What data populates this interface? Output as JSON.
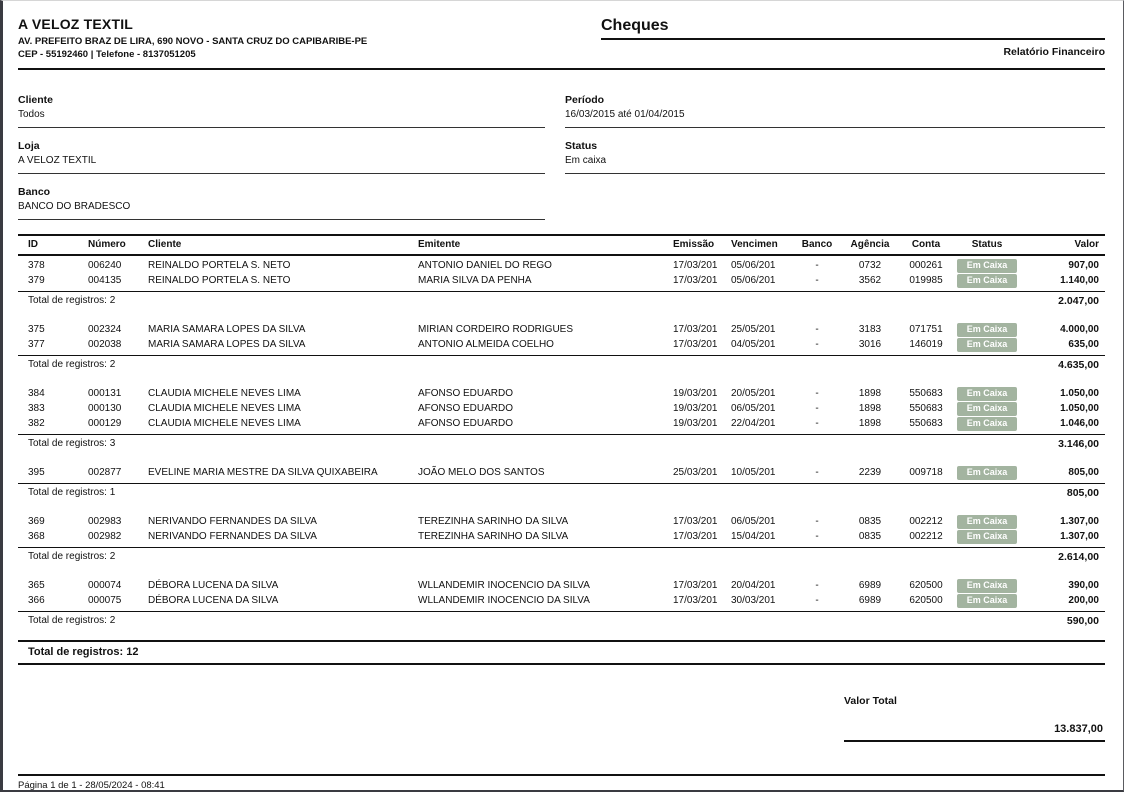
{
  "company": {
    "name": "A VELOZ TEXTIL",
    "address": "AV. PREFEITO BRAZ DE LIRA, 690 NOVO - SANTA CRUZ DO CAPIBARIBE-PE",
    "cep_phone": "CEP - 55192460 | Telefone - 8137051205"
  },
  "report": {
    "title": "Cheques",
    "subtitle": "Relatório Financeiro"
  },
  "filters": {
    "left": [
      {
        "label": "Cliente",
        "value": "Todos"
      },
      {
        "label": "Loja",
        "value": "A VELOZ TEXTIL"
      },
      {
        "label": "Banco",
        "value": "BANCO DO BRADESCO"
      }
    ],
    "right": [
      {
        "label": "Período",
        "value": "16/03/2015 até 01/04/2015"
      },
      {
        "label": "Status",
        "value": "Em caixa"
      }
    ]
  },
  "table": {
    "columns": [
      "ID",
      "Número",
      "Cliente",
      "Emitente",
      "Emissão",
      "Vencimen",
      "Banco",
      "Agência",
      "Conta",
      "Status",
      "Valor"
    ],
    "groups": [
      {
        "rows": [
          {
            "id": "378",
            "numero": "006240",
            "cliente": "REINALDO PORTELA S. NETO",
            "emitente": "ANTONIO DANIEL DO REGO",
            "emissao": "17/03/201",
            "vencimento": "05/06/201",
            "banco": "-",
            "agencia": "0732",
            "conta": "000261",
            "status": "Em Caixa",
            "valor": "907,00"
          },
          {
            "id": "379",
            "numero": "004135",
            "cliente": "REINALDO PORTELA S. NETO",
            "emitente": "MARIA SILVA DA PENHA",
            "emissao": "17/03/201",
            "vencimento": "05/06/201",
            "banco": "-",
            "agencia": "3562",
            "conta": "019985",
            "status": "Em Caixa",
            "valor": "1.140,00"
          }
        ],
        "total_label": "Total de registros: 2",
        "total_valor": "2.047,00"
      },
      {
        "rows": [
          {
            "id": "375",
            "numero": "002324",
            "cliente": "MARIA SAMARA LOPES DA SILVA",
            "emitente": "MIRIAN CORDEIRO RODRIGUES",
            "emissao": "17/03/201",
            "vencimento": "25/05/201",
            "banco": "-",
            "agencia": "3183",
            "conta": "071751",
            "status": "Em Caixa",
            "valor": "4.000,00"
          },
          {
            "id": "377",
            "numero": "002038",
            "cliente": "MARIA SAMARA LOPES DA SILVA",
            "emitente": "ANTONIO ALMEIDA COELHO",
            "emissao": "17/03/201",
            "vencimento": "04/05/201",
            "banco": "-",
            "agencia": "3016",
            "conta": "146019",
            "status": "Em Caixa",
            "valor": "635,00"
          }
        ],
        "total_label": "Total de registros: 2",
        "total_valor": "4.635,00"
      },
      {
        "rows": [
          {
            "id": "384",
            "numero": "000131",
            "cliente": "CLAUDIA MICHELE NEVES LIMA",
            "emitente": "AFONSO EDUARDO",
            "emissao": "19/03/201",
            "vencimento": "20/05/201",
            "banco": "-",
            "agencia": "1898",
            "conta": "550683",
            "status": "Em Caixa",
            "valor": "1.050,00"
          },
          {
            "id": "383",
            "numero": "000130",
            "cliente": "CLAUDIA MICHELE NEVES LIMA",
            "emitente": "AFONSO EDUARDO",
            "emissao": "19/03/201",
            "vencimento": "06/05/201",
            "banco": "-",
            "agencia": "1898",
            "conta": "550683",
            "status": "Em Caixa",
            "valor": "1.050,00"
          },
          {
            "id": "382",
            "numero": "000129",
            "cliente": "CLAUDIA MICHELE NEVES LIMA",
            "emitente": "AFONSO EDUARDO",
            "emissao": "19/03/201",
            "vencimento": "22/04/201",
            "banco": "-",
            "agencia": "1898",
            "conta": "550683",
            "status": "Em Caixa",
            "valor": "1.046,00"
          }
        ],
        "total_label": "Total de registros: 3",
        "total_valor": "3.146,00"
      },
      {
        "rows": [
          {
            "id": "395",
            "numero": "002877",
            "cliente": "EVELINE MARIA MESTRE DA SILVA QUIXABEIRA",
            "emitente": "JOÃO MELO DOS SANTOS",
            "emissao": "25/03/201",
            "vencimento": "10/05/201",
            "banco": "-",
            "agencia": "2239",
            "conta": "009718",
            "status": "Em Caixa",
            "valor": "805,00"
          }
        ],
        "total_label": "Total de registros: 1",
        "total_valor": "805,00"
      },
      {
        "rows": [
          {
            "id": "369",
            "numero": "002983",
            "cliente": "NERIVANDO FERNANDES DA SILVA",
            "emitente": "TEREZINHA SARINHO DA SILVA",
            "emissao": "17/03/201",
            "vencimento": "06/05/201",
            "banco": "-",
            "agencia": "0835",
            "conta": "002212",
            "status": "Em Caixa",
            "valor": "1.307,00"
          },
          {
            "id": "368",
            "numero": "002982",
            "cliente": "NERIVANDO FERNANDES DA SILVA",
            "emitente": "TEREZINHA SARINHO DA SILVA",
            "emissao": "17/03/201",
            "vencimento": "15/04/201",
            "banco": "-",
            "agencia": "0835",
            "conta": "002212",
            "status": "Em Caixa",
            "valor": "1.307,00"
          }
        ],
        "total_label": "Total de registros: 2",
        "total_valor": "2.614,00"
      },
      {
        "rows": [
          {
            "id": "365",
            "numero": "000074",
            "cliente": "DÉBORA LUCENA DA SILVA",
            "emitente": "WLLANDEMIR INOCENCIO DA SILVA",
            "emissao": "17/03/201",
            "vencimento": "20/04/201",
            "banco": "-",
            "agencia": "6989",
            "conta": "620500",
            "status": "Em Caixa",
            "valor": "390,00"
          },
          {
            "id": "366",
            "numero": "000075",
            "cliente": "DÉBORA LUCENA DA SILVA",
            "emitente": "WLLANDEMIR INOCENCIO DA SILVA",
            "emissao": "17/03/201",
            "vencimento": "30/03/201",
            "banco": "-",
            "agencia": "6989",
            "conta": "620500",
            "status": "Em Caixa",
            "valor": "200,00"
          }
        ],
        "total_label": "Total de registros: 2",
        "total_valor": "590,00"
      }
    ],
    "grand_total_label": "Total de registros: 12",
    "valor_total_label": "Valor Total",
    "valor_total": "13.837,00"
  },
  "footer": {
    "page_info": "Página 1 de 1 - 28/05/2024 - 08:41"
  },
  "colors": {
    "badge_bg": "#a3b4a0",
    "badge_text": "#ffffff"
  }
}
